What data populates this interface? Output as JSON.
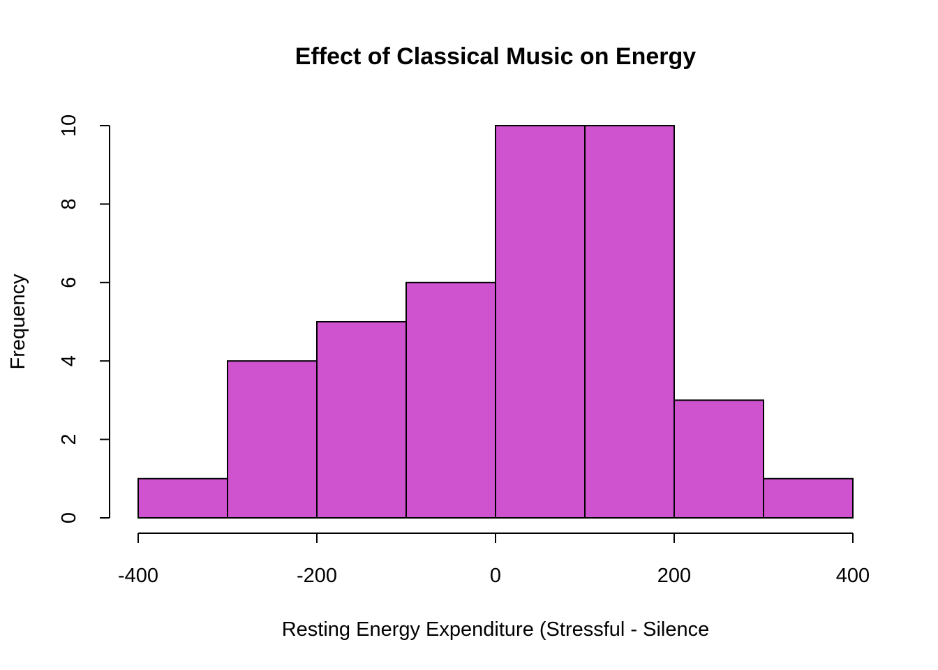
{
  "chart_data": {
    "type": "bar",
    "title": "Effect of Classical Music on Energy",
    "xlabel": "Resting Energy Expenditure (Stressful - Silence",
    "ylabel": "Frequency",
    "bins": [
      {
        "x0": -400,
        "x1": -300,
        "count": 1
      },
      {
        "x0": -300,
        "x1": -200,
        "count": 4
      },
      {
        "x0": -200,
        "x1": -100,
        "count": 5
      },
      {
        "x0": -100,
        "x1": 0,
        "count": 6
      },
      {
        "x0": 0,
        "x1": 100,
        "count": 10
      },
      {
        "x0": 100,
        "x1": 200,
        "count": 10
      },
      {
        "x0": 200,
        "x1": 300,
        "count": 3
      },
      {
        "x0": 300,
        "x1": 400,
        "count": 1
      }
    ],
    "xlim": [
      -400,
      400
    ],
    "ylim": [
      0,
      10
    ],
    "xticks": [
      -400,
      -200,
      0,
      200,
      400
    ],
    "yticks": [
      0,
      2,
      4,
      6,
      8,
      10
    ],
    "bar_color": "#cf53cf",
    "grid": false,
    "legend": "none"
  }
}
